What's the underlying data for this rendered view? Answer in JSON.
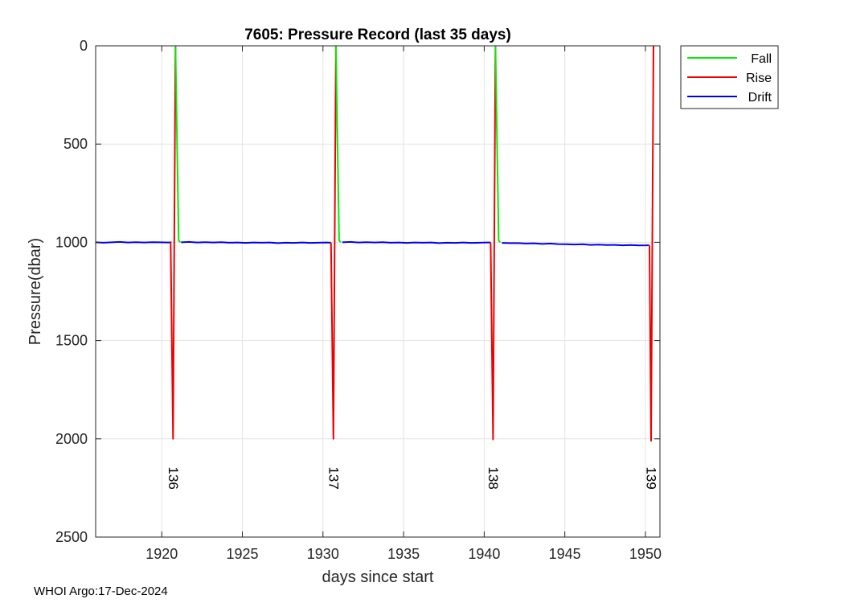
{
  "chart_data": {
    "type": "line",
    "title": "7605: Pressure Record (last 35 days)",
    "xlabel": "days since start",
    "ylabel": "Pressure(dbar)",
    "xlim": [
      1915.9,
      1950.9
    ],
    "ylim": [
      2500,
      0
    ],
    "y_reversed": true,
    "grid": true,
    "xticks": [
      1920,
      1925,
      1930,
      1935,
      1940,
      1945,
      1950
    ],
    "xtick_labels": [
      "1920",
      "1925",
      "1930",
      "1935",
      "1940",
      "1945",
      "1950"
    ],
    "yticks": [
      0,
      500,
      1000,
      1500,
      2000,
      2500
    ],
    "ytick_labels": [
      "0",
      "500",
      "1000",
      "1500",
      "2000",
      "2500"
    ],
    "legend": {
      "position": "top-right-outside",
      "entries": [
        {
          "name": "Fall",
          "color": "#00ee00"
        },
        {
          "name": "Rise",
          "color": "#ee0000"
        },
        {
          "name": "Drift",
          "color": "#0000ee"
        }
      ]
    },
    "series": [
      {
        "name": "Drift",
        "color": "#0000ee",
        "segments": [
          [
            [
              1915.9,
              1000
            ],
            [
              1916.4,
              1002
            ],
            [
              1916.9,
              1000
            ],
            [
              1917.4,
              998
            ],
            [
              1917.9,
              1001
            ],
            [
              1918.4,
              999
            ],
            [
              1918.9,
              1001
            ],
            [
              1919.4,
              999
            ],
            [
              1919.9,
              1000
            ],
            [
              1920.4,
              1001
            ],
            [
              1920.6,
              1000
            ]
          ],
          [
            [
              1921.2,
              1000
            ],
            [
              1921.7,
              998
            ],
            [
              1922.2,
              1001
            ],
            [
              1922.7,
              999
            ],
            [
              1923.2,
              1001
            ],
            [
              1923.7,
              999
            ],
            [
              1924.2,
              1002
            ],
            [
              1924.7,
              1001
            ],
            [
              1925.2,
              1003
            ],
            [
              1925.7,
              1001
            ],
            [
              1926.2,
              1002
            ],
            [
              1926.7,
              1001
            ],
            [
              1927.2,
              1004
            ],
            [
              1927.7,
              1002
            ],
            [
              1928.2,
              1003
            ],
            [
              1928.7,
              1001
            ],
            [
              1929.2,
              1003
            ],
            [
              1929.7,
              1002
            ],
            [
              1930.2,
              1001
            ],
            [
              1930.5,
              1002
            ]
          ],
          [
            [
              1931.2,
              1000
            ],
            [
              1931.7,
              998
            ],
            [
              1932.2,
              1001
            ],
            [
              1932.7,
              999
            ],
            [
              1933.2,
              1001
            ],
            [
              1933.7,
              999
            ],
            [
              1934.2,
              1002
            ],
            [
              1934.7,
              1001
            ],
            [
              1935.2,
              1003
            ],
            [
              1935.7,
              1001
            ],
            [
              1936.2,
              1002
            ],
            [
              1936.7,
              1001
            ],
            [
              1937.2,
              1004
            ],
            [
              1937.7,
              1002
            ],
            [
              1938.2,
              1003
            ],
            [
              1938.7,
              1001
            ],
            [
              1939.2,
              1003
            ],
            [
              1939.7,
              1002
            ],
            [
              1940.2,
              1001
            ],
            [
              1940.4,
              1001
            ]
          ],
          [
            [
              1941.1,
              1003
            ],
            [
              1941.6,
              1004
            ],
            [
              1942.1,
              1004
            ],
            [
              1942.6,
              1006
            ],
            [
              1943.1,
              1005
            ],
            [
              1943.6,
              1008
            ],
            [
              1944.1,
              1006
            ],
            [
              1944.6,
              1009
            ],
            [
              1945.1,
              1010
            ],
            [
              1945.6,
              1011
            ],
            [
              1946.1,
              1010
            ],
            [
              1946.6,
              1013
            ],
            [
              1947.1,
              1012
            ],
            [
              1947.6,
              1014
            ],
            [
              1948.1,
              1013
            ],
            [
              1948.6,
              1015
            ],
            [
              1949.1,
              1014
            ],
            [
              1949.6,
              1016
            ],
            [
              1950.1,
              1015
            ],
            [
              1950.2,
              1014
            ]
          ]
        ]
      },
      {
        "name": "Rise",
        "color": "#ee0000",
        "segments": [
          [
            [
              1920.5,
              1000
            ],
            [
              1920.55,
              1003
            ],
            [
              1920.7,
              2000
            ],
            [
              1920.85,
              0
            ]
          ],
          [
            [
              1930.45,
              1003
            ],
            [
              1930.5,
              1005
            ],
            [
              1930.65,
              2000
            ],
            [
              1930.8,
              0
            ]
          ],
          [
            [
              1940.35,
              1003
            ],
            [
              1940.4,
              1005
            ],
            [
              1940.55,
              2003
            ],
            [
              1940.7,
              0
            ]
          ],
          [
            [
              1950.2,
              1014
            ],
            [
              1950.25,
              1018
            ],
            [
              1950.35,
              2010
            ],
            [
              1950.5,
              0
            ]
          ]
        ]
      },
      {
        "name": "Fall",
        "color": "#00ee00",
        "segments": [
          [
            [
              1920.85,
              0
            ],
            [
              1920.95,
              500
            ],
            [
              1921.05,
              990
            ],
            [
              1921.15,
              1000
            ]
          ],
          [
            [
              1930.8,
              0
            ],
            [
              1930.9,
              500
            ],
            [
              1931.0,
              990
            ],
            [
              1931.1,
              1000
            ]
          ],
          [
            [
              1940.7,
              0
            ],
            [
              1940.8,
              500
            ],
            [
              1940.9,
              990
            ],
            [
              1941.0,
              1000
            ]
          ]
        ]
      }
    ],
    "annotations": [
      {
        "text": "136",
        "x": 1920.7,
        "y": 2200
      },
      {
        "text": "137",
        "x": 1930.65,
        "y": 2200
      },
      {
        "text": "138",
        "x": 1940.55,
        "y": 2200
      },
      {
        "text": "139",
        "x": 1950.35,
        "y": 2200
      }
    ]
  },
  "footer": "WHOI Argo:17-Dec-2024"
}
